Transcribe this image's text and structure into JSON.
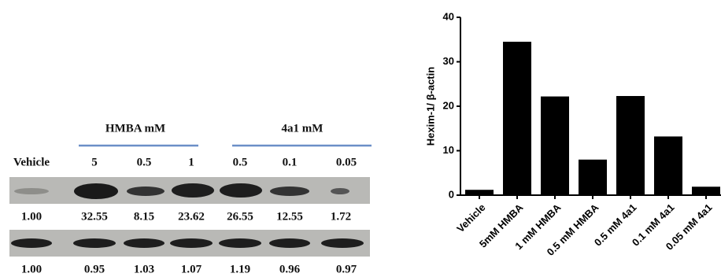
{
  "blot": {
    "groups": [
      "HMBA  mM",
      "4a1   mM"
    ],
    "lanes": [
      "Vehicle",
      "5",
      "0.5",
      "1",
      "0.5",
      "0.1",
      "0.05"
    ],
    "hexim_ratios": [
      "1.00",
      "32.55",
      "8.15",
      "23.62",
      "26.55",
      "12.55",
      "1.72"
    ],
    "actin_ratios": [
      "1.00",
      "0.95",
      "1.03",
      "1.07",
      "1.19",
      "0.96",
      "0.97"
    ]
  },
  "chart_data": {
    "type": "bar",
    "ylabel": "Hexim-1/ β-actin",
    "categories": [
      "Vehicle",
      "5mM HMBA",
      "1 mM HMBA",
      "0.5 mM HMBA",
      "0.5 mM 4a1",
      "0.1 mM 4a1",
      "0.05 mM 4a1"
    ],
    "values": [
      1.2,
      34.5,
      22.2,
      8.0,
      22.3,
      13.2,
      1.9
    ],
    "color": "#000000",
    "ylim": [
      0,
      40
    ],
    "yticks": [
      0,
      10,
      20,
      30,
      40
    ]
  }
}
